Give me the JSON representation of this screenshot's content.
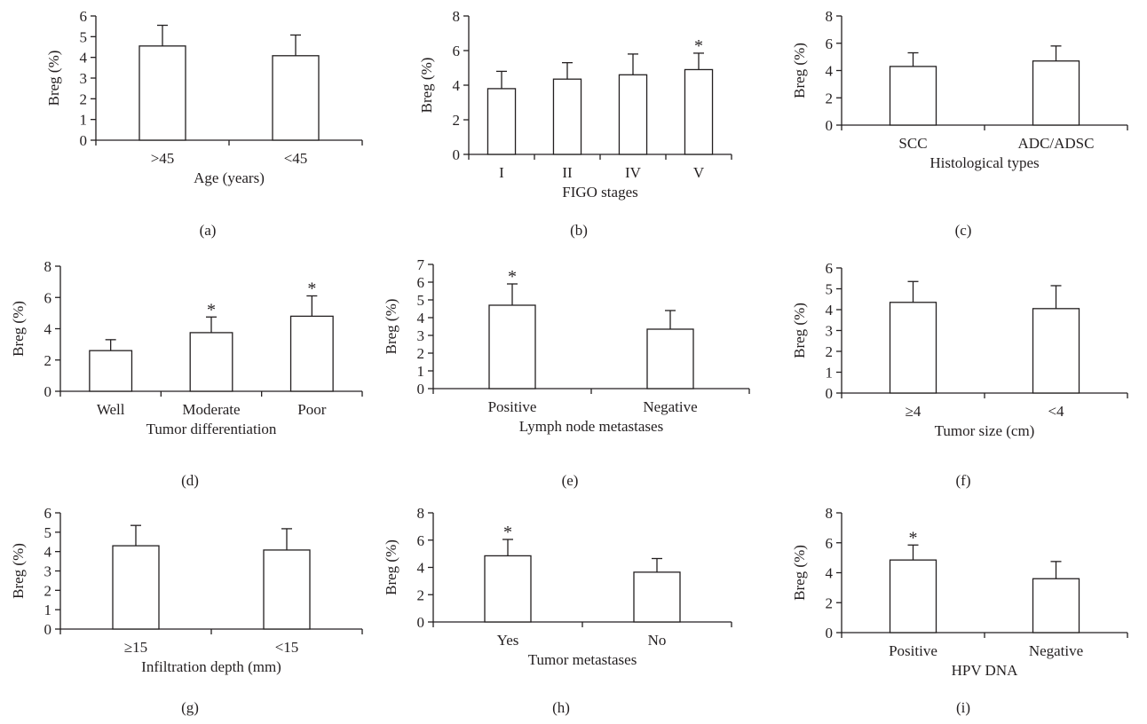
{
  "chart_data": [
    {
      "type": "bar",
      "panel_label": "(a)",
      "xlabel": "Age (years)",
      "ylabel": "Breg (%)",
      "ylim": [
        0,
        6
      ],
      "yticks": [
        "0",
        "1",
        "2",
        "3",
        "4",
        "5",
        "6"
      ],
      "categories": [
        ">45",
        "<45"
      ],
      "values": [
        4.55,
        4.08
      ],
      "errors": [
        1.0,
        1.0
      ],
      "significant": [
        "",
        ""
      ]
    },
    {
      "type": "bar",
      "panel_label": "(b)",
      "xlabel": "FIGO stages",
      "ylabel": "Breg (%)",
      "ylim": [
        0,
        8
      ],
      "yticks": [
        "0",
        "2",
        "4",
        "6",
        "8"
      ],
      "categories": [
        "I",
        "II",
        "IV",
        "V"
      ],
      "values": [
        3.8,
        4.35,
        4.6,
        4.9
      ],
      "errors": [
        1.0,
        0.95,
        1.2,
        0.95
      ],
      "significant": [
        "",
        "",
        "",
        "*"
      ]
    },
    {
      "type": "bar",
      "panel_label": "(c)",
      "xlabel": "Histological types",
      "ylabel": "Breg (%)",
      "ylim": [
        0,
        8
      ],
      "yticks": [
        "0",
        "2",
        "4",
        "6",
        "8"
      ],
      "categories": [
        "SCC",
        "ADC/ADSC"
      ],
      "values": [
        4.3,
        4.7
      ],
      "errors": [
        1.0,
        1.1
      ],
      "significant": [
        "",
        ""
      ]
    },
    {
      "type": "bar",
      "panel_label": "(d)",
      "xlabel": "Tumor differentiation",
      "ylabel": "Breg (%)",
      "ylim": [
        0,
        8
      ],
      "yticks": [
        "0",
        "2",
        "4",
        "6",
        "8"
      ],
      "categories": [
        "Well",
        "Moderate",
        "Poor"
      ],
      "values": [
        2.6,
        3.75,
        4.8
      ],
      "errors": [
        0.7,
        1.0,
        1.3
      ],
      "significant": [
        "",
        "*",
        "*"
      ]
    },
    {
      "type": "bar",
      "panel_label": "(e)",
      "xlabel": "Lymph node metastases",
      "ylabel": "Breg (%)",
      "ylim": [
        0,
        7
      ],
      "yticks": [
        "0",
        "1",
        "2",
        "3",
        "4",
        "5",
        "6",
        "7"
      ],
      "categories": [
        "Positive",
        "Negative"
      ],
      "values": [
        4.7,
        3.35
      ],
      "errors": [
        1.2,
        1.05
      ],
      "significant": [
        "*",
        ""
      ]
    },
    {
      "type": "bar",
      "panel_label": "(f)",
      "xlabel": "Tumor size (cm)",
      "ylabel": "Breg (%)",
      "ylim": [
        0,
        6
      ],
      "yticks": [
        "0",
        "1",
        "2",
        "3",
        "4",
        "5",
        "6"
      ],
      "categories": [
        "≥4",
        "<4"
      ],
      "values": [
        4.35,
        4.05
      ],
      "errors": [
        1.0,
        1.1
      ],
      "significant": [
        "",
        ""
      ]
    },
    {
      "type": "bar",
      "panel_label": "(g)",
      "xlabel": "Infiltration depth (mm)",
      "ylabel": "Breg (%)",
      "ylim": [
        0,
        6
      ],
      "yticks": [
        "0",
        "1",
        "2",
        "3",
        "4",
        "5",
        "6"
      ],
      "categories": [
        "≥15",
        "<15"
      ],
      "values": [
        4.3,
        4.08
      ],
      "errors": [
        1.05,
        1.1
      ],
      "significant": [
        "",
        ""
      ]
    },
    {
      "type": "bar",
      "panel_label": "(h)",
      "xlabel": "Tumor metastases",
      "ylabel": "Breg (%)",
      "ylim": [
        0,
        8
      ],
      "yticks": [
        "0",
        "2",
        "4",
        "6",
        "8"
      ],
      "categories": [
        "Yes",
        "No"
      ],
      "values": [
        4.85,
        3.65
      ],
      "errors": [
        1.2,
        1.0
      ],
      "significant": [
        "*",
        ""
      ]
    },
    {
      "type": "bar",
      "panel_label": "(i)",
      "xlabel": "HPV DNA",
      "ylabel": "Breg (%)",
      "ylim": [
        0,
        8
      ],
      "yticks": [
        "0",
        "2",
        "4",
        "6",
        "8"
      ],
      "categories": [
        "Positive",
        "Negative"
      ],
      "values": [
        4.85,
        3.6
      ],
      "errors": [
        1.0,
        1.15
      ],
      "significant": [
        "*",
        ""
      ]
    }
  ]
}
